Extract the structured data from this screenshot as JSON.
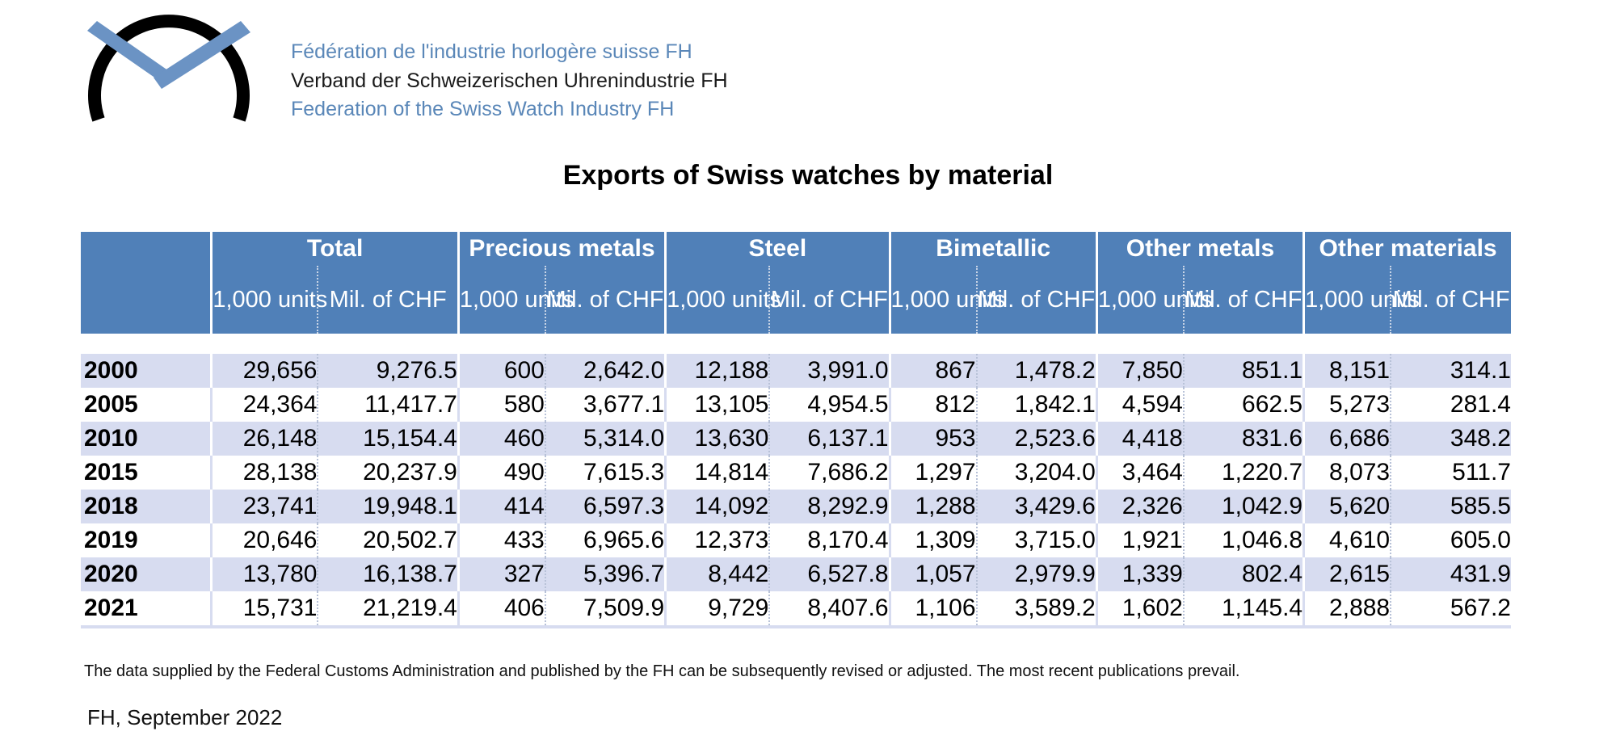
{
  "header": {
    "org_line_fr": "Fédération de l'industrie horlogère suisse FH",
    "org_line_de": "Verband der Schweizerischen Uhrenindustrie FH",
    "org_line_en": "Federation of the Swiss Watch Industry FH"
  },
  "title": "Exports of Swiss watches by material",
  "table": {
    "groups": [
      "Total",
      "Precious metals",
      "Steel",
      "Bimetallic",
      "Other metals",
      "Other materials"
    ],
    "sub_headers": [
      "1,000 units",
      "Mil. of CHF"
    ],
    "rows": [
      {
        "year": "2000",
        "cells": [
          "29,656",
          "9,276.5",
          "600",
          "2,642.0",
          "12,188",
          "3,991.0",
          "867",
          "1,478.2",
          "7,850",
          "851.1",
          "8,151",
          "314.1"
        ]
      },
      {
        "year": "2005",
        "cells": [
          "24,364",
          "11,417.7",
          "580",
          "3,677.1",
          "13,105",
          "4,954.5",
          "812",
          "1,842.1",
          "4,594",
          "662.5",
          "5,273",
          "281.4"
        ]
      },
      {
        "year": "2010",
        "cells": [
          "26,148",
          "15,154.4",
          "460",
          "5,314.0",
          "13,630",
          "6,137.1",
          "953",
          "2,523.6",
          "4,418",
          "831.6",
          "6,686",
          "348.2"
        ]
      },
      {
        "year": "2015",
        "cells": [
          "28,138",
          "20,237.9",
          "490",
          "7,615.3",
          "14,814",
          "7,686.2",
          "1,297",
          "3,204.0",
          "3,464",
          "1,220.7",
          "8,073",
          "511.7"
        ]
      },
      {
        "year": "2018",
        "cells": [
          "23,741",
          "19,948.1",
          "414",
          "6,597.3",
          "14,092",
          "8,292.9",
          "1,288",
          "3,429.6",
          "2,326",
          "1,042.9",
          "5,620",
          "585.5"
        ]
      },
      {
        "year": "2019",
        "cells": [
          "20,646",
          "20,502.7",
          "433",
          "6,965.6",
          "12,373",
          "8,170.4",
          "1,309",
          "3,715.0",
          "1,921",
          "1,046.8",
          "4,610",
          "605.0"
        ]
      },
      {
        "year": "2020",
        "cells": [
          "13,780",
          "16,138.7",
          "327",
          "5,396.7",
          "8,442",
          "6,527.8",
          "1,057",
          "2,979.9",
          "1,339",
          "802.4",
          "2,615",
          "431.9"
        ]
      },
      {
        "year": "2021",
        "cells": [
          "15,731",
          "21,219.4",
          "406",
          "7,509.9",
          "9,729",
          "8,407.6",
          "1,106",
          "3,589.2",
          "1,602",
          "1,145.4",
          "2,888",
          "567.2"
        ]
      }
    ]
  },
  "footnote": "The data supplied by the Federal Customs Administration and published by the FH can be subsequently revised or adjusted. The most recent publications prevail.",
  "date_line": "FH, September 2022",
  "colors": {
    "header_blue": "#5080b8",
    "stripe": "#d7dcf0",
    "logo_blue": "#6b93c4",
    "org_text_blue": "#5a87b8"
  }
}
